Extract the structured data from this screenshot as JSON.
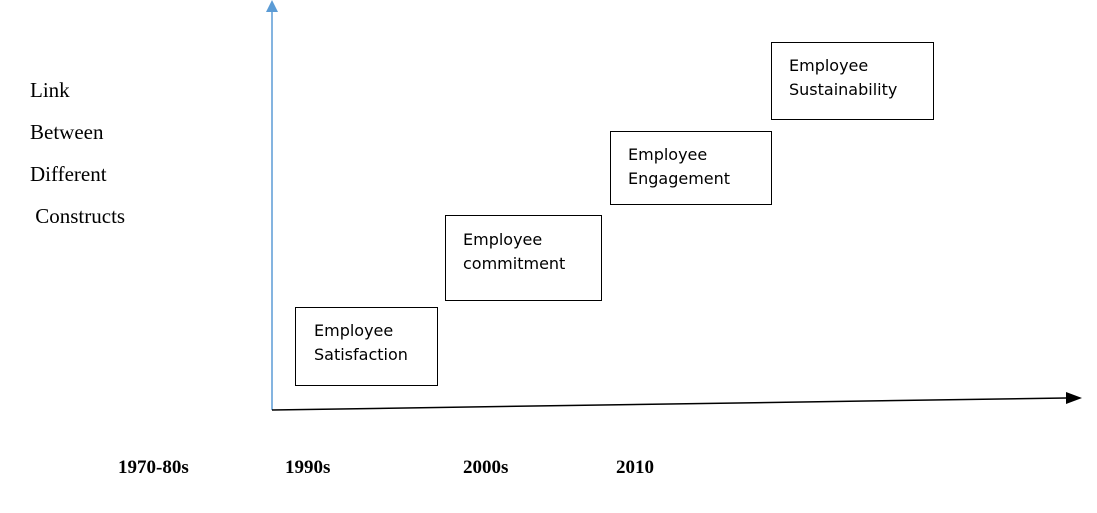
{
  "y_axis_label": {
    "lines": [
      "Link",
      "Between",
      "Different",
      " Constructs"
    ]
  },
  "stages": [
    {
      "line1": "Employee",
      "line2": "Satisfaction"
    },
    {
      "line1": "Employee",
      "line2": "commitment"
    },
    {
      "line1": "Employee",
      "line2": "Engagement"
    },
    {
      "line1": "Employee",
      "line2": "Sustainability"
    }
  ],
  "periods": [
    "1970-80s",
    "1990s",
    "2000s",
    "2010"
  ],
  "colors": {
    "y_axis": "#5b9bd5",
    "x_axis": "#000000",
    "box_border": "#000000",
    "text": "#000000"
  }
}
